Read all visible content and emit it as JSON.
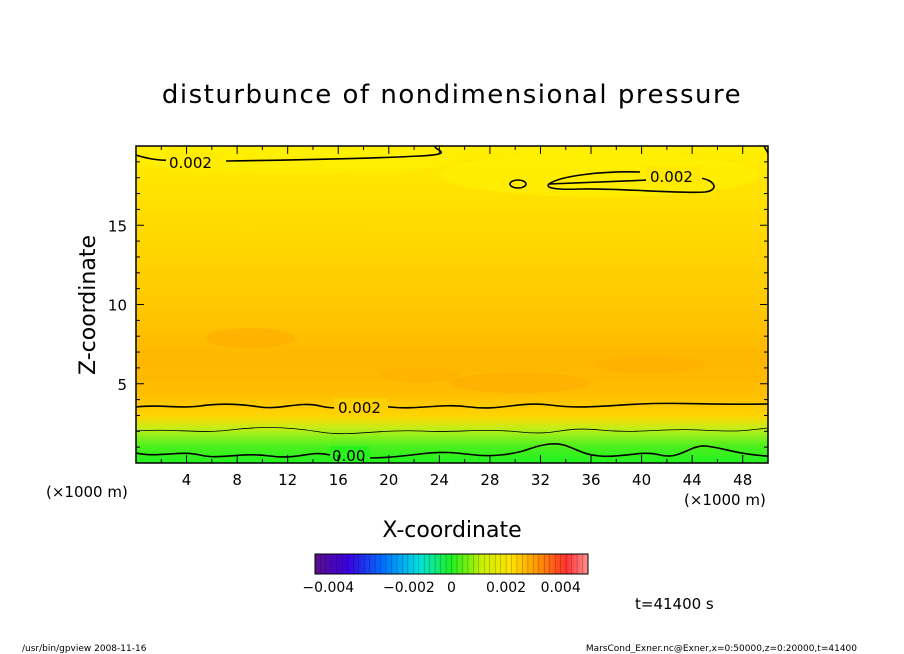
{
  "chart_data": {
    "type": "heatmap",
    "title": "disturbunce of nondimensional pressure",
    "xlabel": "X-coordinate",
    "ylabel": "Z-coordinate",
    "x_unit_left": "(×1000 m)",
    "x_unit_right": "(×1000 m)",
    "xlim": [
      0,
      50
    ],
    "ylim": [
      0,
      20
    ],
    "x_ticks": [
      4,
      8,
      12,
      16,
      20,
      24,
      28,
      32,
      36,
      40,
      44,
      48
    ],
    "y_ticks": [
      5,
      10,
      15
    ],
    "z_levels": [
      0.0,
      1.5,
      3.2,
      5.5,
      7.0,
      10.0,
      12.0,
      14.0,
      16.0,
      18.0,
      20.0
    ],
    "z_values": [
      0.0006,
      0.0012,
      0.0021,
      0.0028,
      0.0031,
      0.0027,
      0.0026,
      0.0025,
      0.0023,
      0.0021,
      0.0019
    ],
    "contours": [
      {
        "label": "0.002",
        "z": 3.7
      },
      {
        "label": "0.002",
        "z": 19.3
      },
      {
        "label": "0.002",
        "x_range": [
          32.5,
          41.5
        ],
        "z": 17.4
      },
      {
        "label": "0.00",
        "z": 0.4
      }
    ],
    "contour_labels": [
      "0.002",
      "0.002",
      "0.002",
      "0.00"
    ],
    "colorbar": {
      "range": [
        -0.005,
        0.005
      ],
      "ticks": [
        "−0.004",
        "−0.002",
        "0",
        "0.002",
        "0.004"
      ]
    },
    "time_label": "t=41400 s",
    "footer_left": "/usr/bin/gpview   2008-11-16",
    "footer_right": "MarsCond_Exner.nc@Exner,x=0:50000,z=0:20000,t=41400"
  },
  "colors": {
    "green": "#1ff21f",
    "light_green": "#9ef21a",
    "yellow": "#ffec00",
    "yellow_orange": "#ffd400",
    "orange": "#ffb400",
    "axis": "#000000"
  }
}
